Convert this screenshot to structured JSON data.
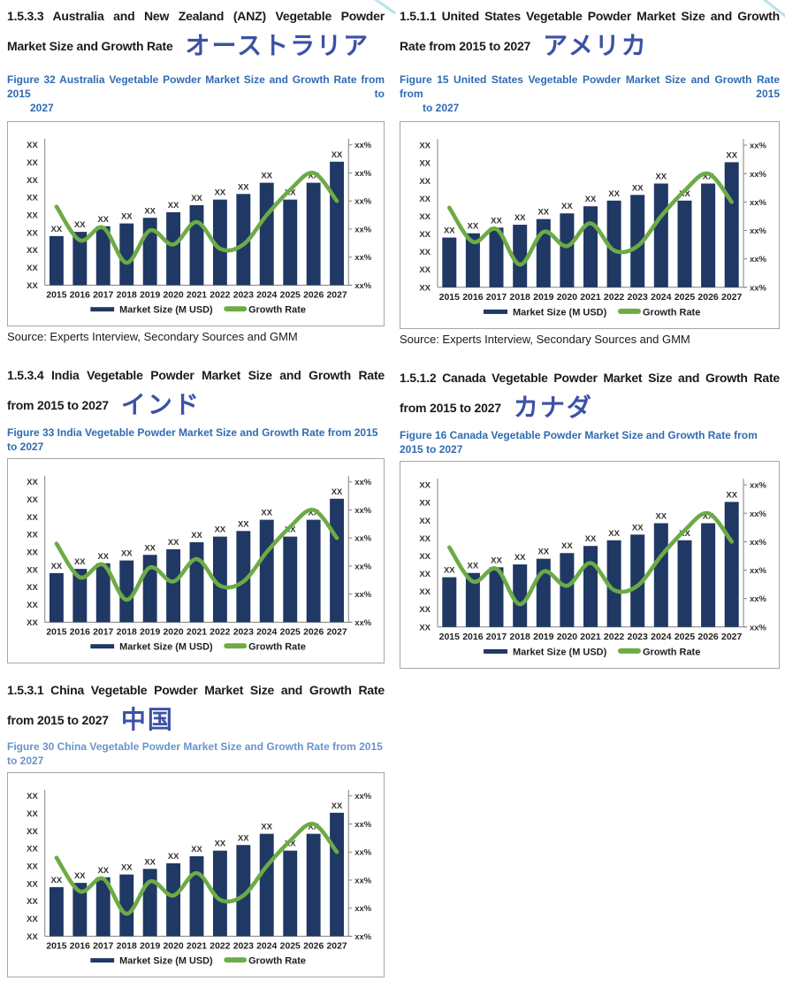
{
  "document": {
    "legend": {
      "market_size_label": "Market Size (M USD)",
      "growth_rate_label": "Growth Rate"
    },
    "source_note": "Source: Experts Interview, Secondary Sources and GMM",
    "sections": [
      {
        "id": "australia",
        "heading_lines": [
          "1.5.3.3 Australia and New Zealand (ANZ) Vegetable Powder",
          "Market Size and Growth Rate"
        ],
        "annotation_jp": "オーストラリア",
        "caption_lines": [
          "Figure 32 Australia Vegetable Powder Market Size and Growth Rate from 2015 to",
          "2027"
        ],
        "has_source": true
      },
      {
        "id": "united-states",
        "heading_lines": [
          "1.5.1.1 United States Vegetable Powder Market Size and Growth",
          "Rate from 2015 to 2027"
        ],
        "annotation_jp": "アメリカ",
        "caption_lines": [
          "Figure 15 United States Vegetable Powder Market Size and Growth Rate from 2015",
          "to 2027"
        ],
        "has_source": true
      },
      {
        "id": "india",
        "heading_lines": [
          "1.5.3.4 India Vegetable Powder Market Size and Growth Rate",
          "from 2015 to 2027"
        ],
        "annotation_jp": "インド",
        "caption_lines": [
          "Figure 33 India Vegetable Powder Market Size and Growth Rate from 2015 to 2027"
        ],
        "has_source": false
      },
      {
        "id": "canada",
        "heading_lines": [
          "1.5.1.2 Canada Vegetable Powder Market Size and Growth Rate",
          "from 2015 to 2027"
        ],
        "annotation_jp": "カナダ",
        "caption_lines": [
          "Figure 16 Canada Vegetable Powder Market Size and Growth Rate from 2015 to 2027"
        ],
        "has_source": false
      },
      {
        "id": "china",
        "heading_lines": [
          "1.5.3.1 China Vegetable Powder Market Size and Growth Rate",
          "from 2015 to 2027"
        ],
        "annotation_jp": "中国",
        "caption_lines": [
          "Figure 30 China Vegetable Powder Market Size and Growth Rate from 2015 to 2027"
        ],
        "has_source": false
      }
    ]
  },
  "chart_data": {
    "type": "combo",
    "note": "All five figures show the same placeholder chart; numeric values are masked as XX / xx% in the source document.",
    "categories": [
      "2015",
      "2016",
      "2017",
      "2018",
      "2019",
      "2020",
      "2021",
      "2022",
      "2023",
      "2024",
      "2025",
      "2026",
      "2027"
    ],
    "series": [
      {
        "name": "Market Size (M USD)",
        "chart_type": "bar",
        "axis": "left",
        "color": "#1F3864",
        "value_labels": [
          "XX",
          "XX",
          "XX",
          "XX",
          "XX",
          "XX",
          "XX",
          "XX",
          "XX",
          "XX",
          "XX",
          "XX",
          "XX"
        ],
        "relative_heights": [
          0.35,
          0.38,
          0.42,
          0.44,
          0.48,
          0.52,
          0.57,
          0.61,
          0.65,
          0.73,
          0.61,
          0.73,
          0.88
        ]
      },
      {
        "name": "Growth Rate",
        "chart_type": "line",
        "axis": "right",
        "color": "#6CAB45",
        "relative_values": [
          0.56,
          0.32,
          0.41,
          0.16,
          0.39,
          0.29,
          0.45,
          0.26,
          0.29,
          0.5,
          0.68,
          0.8,
          0.6
        ]
      }
    ],
    "left_axis_tick_labels": [
      "XX",
      "XX",
      "XX",
      "XX",
      "XX",
      "XX",
      "XX",
      "XX",
      "XX"
    ],
    "right_axis_tick_labels": [
      "xx%",
      "xx%",
      "xx%",
      "xx%",
      "xx%",
      "xx%"
    ],
    "legend_position": "bottom",
    "grid": false,
    "instances": [
      "Australia (Figure 32)",
      "United States (Figure 15)",
      "India (Figure 33)",
      "Canada (Figure 16)",
      "China (Figure 30)"
    ]
  },
  "colors": {
    "bar": "#1F3864",
    "growth_line": "#6CAB45",
    "heading_text": "#1A1A1A",
    "caption_blue": "#2F6BB3",
    "annotation_blue": "#3C51A6",
    "axis_line": "#808080",
    "tick_text": "#333333",
    "chart_border": "#A6A6A6",
    "artifact_cyan": "#7ECBDC"
  }
}
